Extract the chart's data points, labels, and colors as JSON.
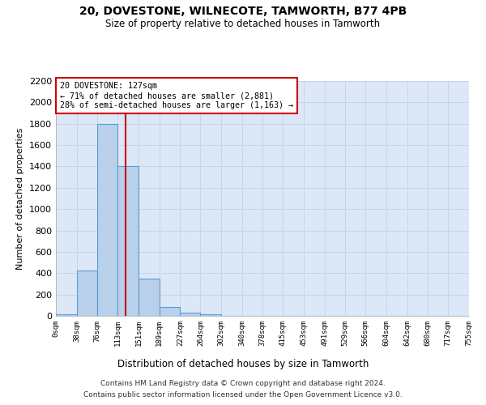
{
  "title1": "20, DOVESTONE, WILNECOTE, TAMWORTH, B77 4PB",
  "title2": "Size of property relative to detached houses in Tamworth",
  "xlabel": "Distribution of detached houses by size in Tamworth",
  "ylabel": "Number of detached properties",
  "footer1": "Contains HM Land Registry data © Crown copyright and database right 2024.",
  "footer2": "Contains public sector information licensed under the Open Government Licence v3.0.",
  "annotation_line1": "20 DOVESTONE: 127sqm",
  "annotation_line2": "← 71% of detached houses are smaller (2,881)",
  "annotation_line3": "28% of semi-detached houses are larger (1,163) →",
  "property_size": 127,
  "bin_edges": [
    0,
    38,
    76,
    113,
    151,
    189,
    227,
    264,
    302,
    340,
    378,
    415,
    453,
    491,
    529,
    566,
    604,
    642,
    680,
    717,
    755
  ],
  "bar_heights": [
    15,
    425,
    1800,
    1400,
    350,
    80,
    30,
    15,
    0,
    0,
    0,
    0,
    0,
    0,
    0,
    0,
    0,
    0,
    0,
    0
  ],
  "bar_color": "#b8d0ea",
  "bar_edge_color": "#5b9bd5",
  "vline_color": "#cc0000",
  "annotation_box_color": "white",
  "annotation_box_edge_color": "#cc0000",
  "grid_color": "#c8d4e8",
  "background_color": "#dce8f8",
  "ylim": [
    0,
    2200
  ],
  "yticks": [
    0,
    200,
    400,
    600,
    800,
    1000,
    1200,
    1400,
    1600,
    1800,
    2000,
    2200
  ]
}
